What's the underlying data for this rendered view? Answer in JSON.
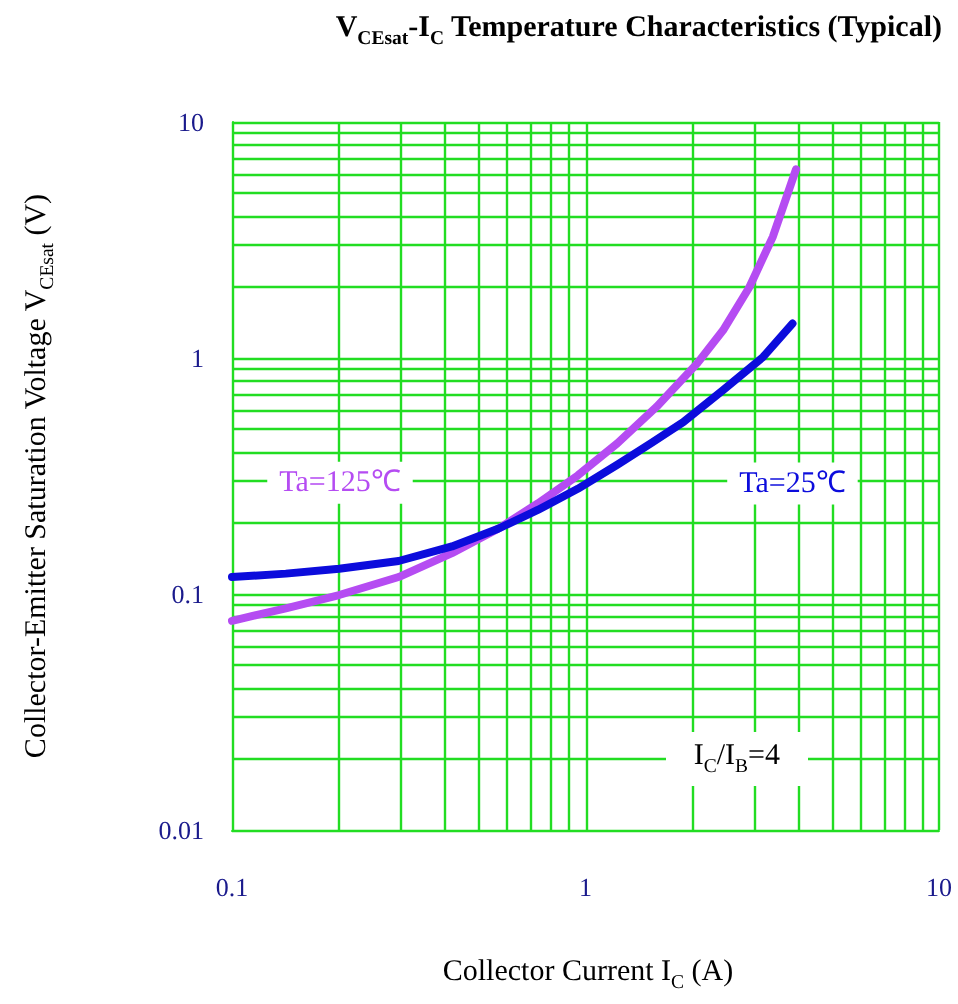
{
  "chart_data": {
    "type": "line",
    "title": "V$_{CEsat}$-I$_{C}$ Temperature Characteristics (Typical)",
    "xlabel": "Collector   Current   I$_{C}$ (A)",
    "ylabel": "Collector-Emitter Saturation Voltage   V$_{CEsat}$  (V)",
    "annotations": [
      "I$_{C}$/I$_{B}$=4"
    ],
    "log": "xy",
    "grid": true,
    "marker": "none",
    "line_style": "solid",
    "xlim": [
      0.1,
      10
    ],
    "xticks": [
      0.1,
      {
        "value": 0.2,
        "label": null
      },
      {
        "value": 0.3,
        "label": null
      },
      {
        "value": 0.4,
        "label": null
      },
      {
        "value": 0.5,
        "label": null
      },
      {
        "value": 0.6,
        "label": null
      },
      {
        "value": 0.7,
        "label": null
      },
      {
        "value": 0.8,
        "label": null
      },
      {
        "value": 0.9,
        "label": null
      },
      1,
      {
        "value": 2,
        "label": null
      },
      {
        "value": 3,
        "label": null
      },
      {
        "value": 4,
        "label": null
      },
      {
        "value": 5,
        "label": null
      },
      {
        "value": 6,
        "label": null
      },
      {
        "value": 7,
        "label": null
      },
      {
        "value": 8,
        "label": null
      },
      {
        "value": 9,
        "label": null
      },
      10
    ],
    "ylim": [
      0.01,
      10
    ],
    "yticks": [
      0.01,
      {
        "value": 0.02,
        "label": null
      },
      {
        "value": 0.03,
        "label": null
      },
      {
        "value": 0.04,
        "label": null
      },
      {
        "value": 0.05,
        "label": null
      },
      {
        "value": 0.06,
        "label": null
      },
      {
        "value": 0.07,
        "label": null
      },
      {
        "value": 0.08,
        "label": null
      },
      {
        "value": 0.09,
        "label": null
      },
      0.1,
      {
        "value": 0.2,
        "label": null
      },
      {
        "value": 0.3,
        "label": null
      },
      {
        "value": 0.4,
        "label": null
      },
      {
        "value": 0.5,
        "label": null
      },
      {
        "value": 0.6,
        "label": null
      },
      {
        "value": 0.7,
        "label": null
      },
      {
        "value": 0.8,
        "label": null
      },
      {
        "value": 0.9,
        "label": null
      },
      1,
      {
        "value": 2,
        "label": null
      },
      {
        "value": 3,
        "label": null
      },
      {
        "value": 4,
        "label": null
      },
      {
        "value": 5,
        "label": null
      },
      {
        "value": 6,
        "label": null
      },
      {
        "value": 7,
        "label": null
      },
      {
        "value": 8,
        "label": null
      },
      {
        "value": 9,
        "label": null
      },
      10
    ],
    "series": [
      {
        "name": "Ta=125℃",
        "color": "#b54cf2",
        "x": [
          0.1,
          0.142,
          0.201,
          0.296,
          0.419,
          0.566,
          0.733,
          0.951,
          1.23,
          1.59,
          2.07,
          2.45,
          2.91,
          3.39,
          3.94
        ],
        "values": [
          0.077,
          0.087,
          0.099,
          0.118,
          0.149,
          0.189,
          0.242,
          0.318,
          0.435,
          0.622,
          0.949,
          1.31,
          2.0,
          3.27,
          6.3
        ]
      },
      {
        "name": "Ta=25℃",
        "color": "#0c0cdc",
        "x": [
          0.1,
          0.142,
          0.201,
          0.296,
          0.419,
          0.566,
          0.733,
          0.951,
          1.23,
          1.53,
          1.89,
          2.45,
          3.18,
          3.85
        ],
        "values": [
          0.118,
          0.122,
          0.128,
          0.138,
          0.159,
          0.189,
          0.227,
          0.279,
          0.353,
          0.435,
          0.535,
          0.731,
          1.01,
          1.4
        ]
      }
    ]
  }
}
